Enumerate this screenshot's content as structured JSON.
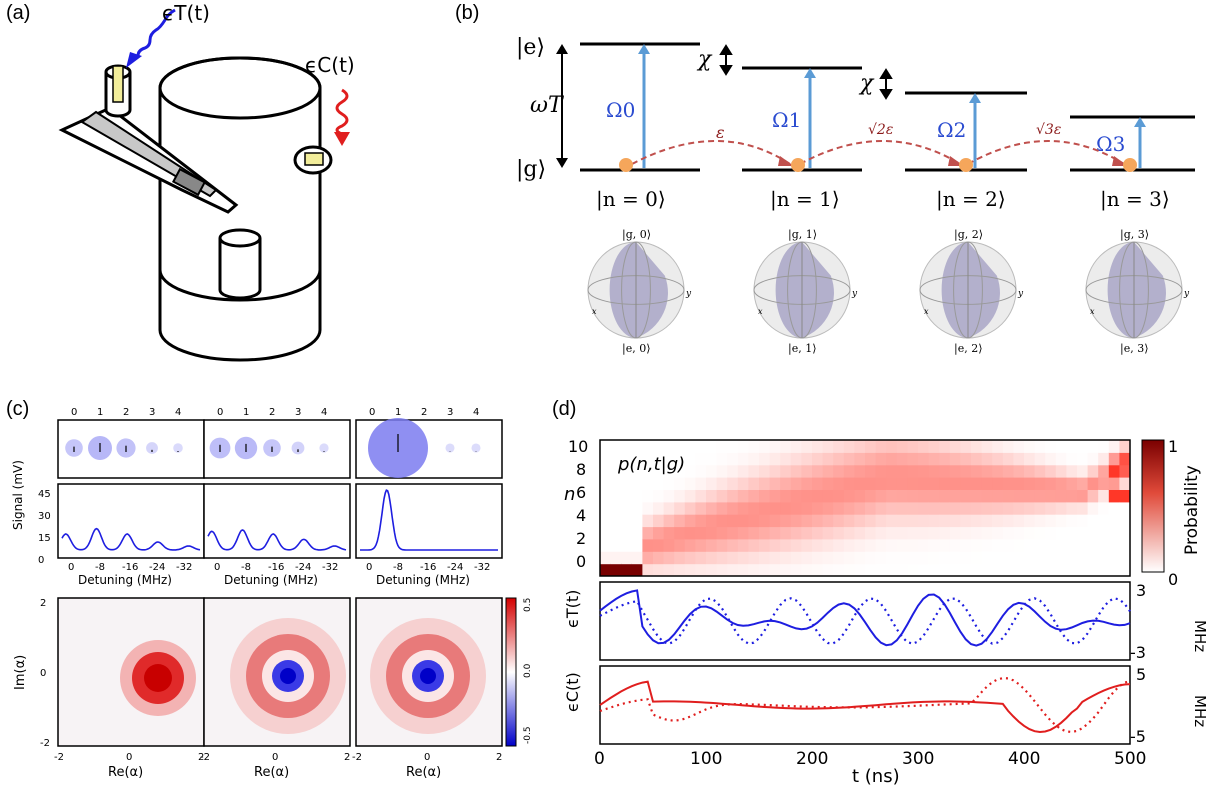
{
  "panels": {
    "a": {
      "label": "(a)",
      "transmon_drive": "ϵT(t)",
      "cavity_drive": "ϵC(t)"
    },
    "b": {
      "label": "(b)",
      "ket_e": "|e⟩",
      "ket_g": "|g⟩",
      "omega_T": "ωT",
      "chi": "χ",
      "rabi": [
        "Ω0",
        "Ω1",
        "Ω2",
        "Ω3"
      ],
      "couplings": [
        "ε",
        "√2ε",
        "√3ε"
      ],
      "fock_kets": [
        "|n = 0⟩",
        "|n = 1⟩",
        "|n = 2⟩",
        "|n = 3⟩"
      ],
      "bloch_top": [
        "|g, 0⟩",
        "|g, 1⟩",
        "|g, 2⟩",
        "|g, 3⟩"
      ],
      "bloch_bottom": [
        "|e, 0⟩",
        "|e, 1⟩",
        "|e, 2⟩",
        "|e, 3⟩"
      ],
      "axis_x": "x",
      "axis_y": "y"
    },
    "c": {
      "label": "(c)",
      "top_ticks": [
        "0",
        "1",
        "2",
        "3",
        "4"
      ],
      "fock_weights": [
        [
          0.3,
          0.5,
          0.35,
          0.12,
          0.05
        ],
        [
          0.4,
          0.45,
          0.3,
          0.15,
          0.04
        ],
        [
          0.0,
          1.0,
          0.0,
          0.02,
          0.02
        ]
      ],
      "signal_ylabel": "Signal (mV)",
      "signal_yticks": [
        "45",
        "30",
        "15",
        "0"
      ],
      "detuning_ticks": [
        "0",
        "-8",
        "-16",
        "-24",
        "-32"
      ],
      "detuning_label": "Detuning (MHz)",
      "wigner_ylabel": "Im(α)",
      "wigner_xlabel": "Re(α)",
      "wigner_ticks": [
        "-2",
        "0",
        "2"
      ],
      "colorbar_ticks": [
        "0.5",
        "0.0",
        "-0.5"
      ],
      "colors": {
        "pos": "#d40000",
        "neg": "#0000c8",
        "marker": "#7b7bf0"
      }
    },
    "d": {
      "label": "(d)",
      "heatmap_title": "p(n,t|g)",
      "n_label": "n",
      "n_ticks": [
        "10",
        "8",
        "6",
        "4",
        "2",
        "0"
      ],
      "colorbar_label": "Probability",
      "colorbar_ticks": [
        "1",
        "0"
      ],
      "eps_T_label": "ϵT(t)",
      "eps_C_label": "ϵC(t)",
      "eps_T_ticks": [
        "3",
        "-3"
      ],
      "eps_C_ticks": [
        "5",
        "-5"
      ],
      "unit": "MHz",
      "t_ticks": [
        "0",
        "100",
        "200",
        "300",
        "400",
        "500"
      ],
      "t_label": "t (ns)",
      "colors": {
        "transmon": "#1e1ee0",
        "cavity": "#e01e1e"
      }
    }
  }
}
